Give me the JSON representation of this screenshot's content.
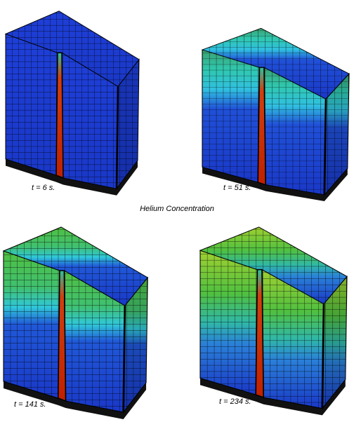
{
  "panels": [
    {
      "label": "t = 6 s."
    },
    {
      "label": "t = 51 s."
    },
    {
      "label": "t = 141 s."
    },
    {
      "label": "t = 234 s."
    }
  ],
  "caption": "Helium Concentration"
}
